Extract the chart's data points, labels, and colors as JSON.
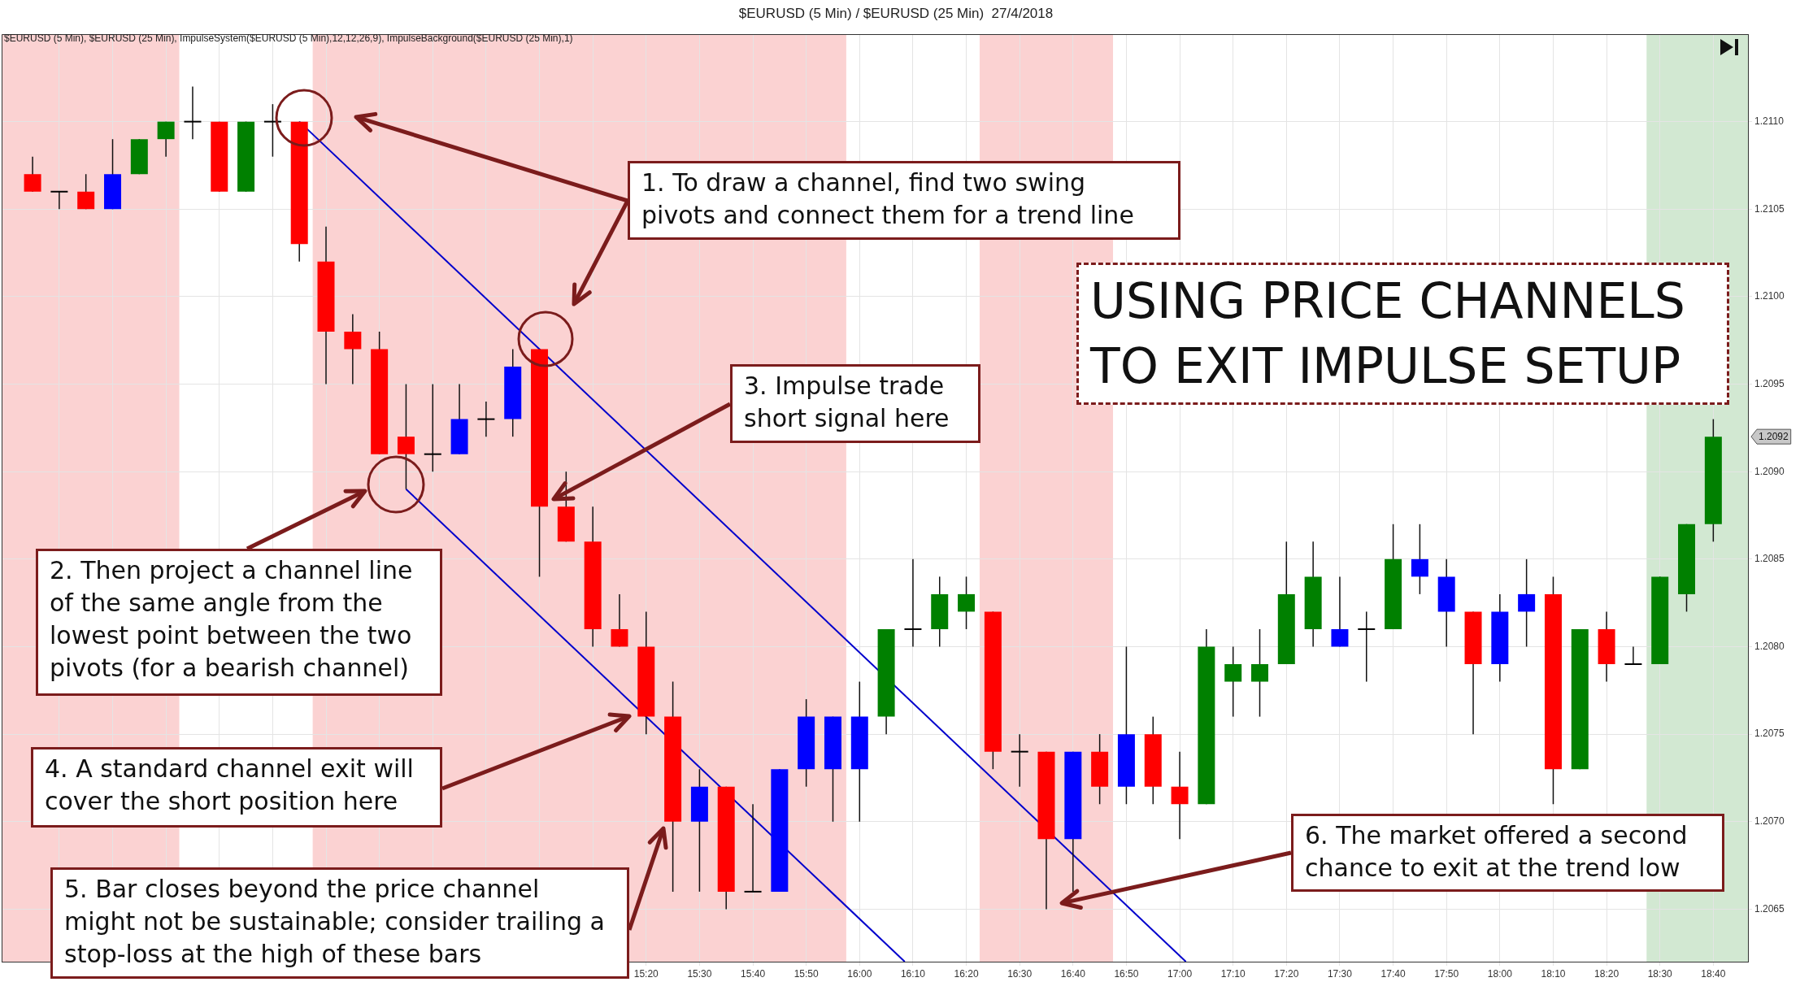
{
  "chart_data": {
    "type": "candlestick",
    "title": "$EURUSD (5 Min) / $EURUSD (25 Min)  27/4/2018",
    "subtitle": "$EURUSD (5 Min), $EURUSD (25 Min), ImpulseSystem($EURUSD (5 Min),12,12,26,9), ImpulseBackground($EURUSD (25 Min),1)",
    "x": [
      13.4167,
      13.5,
      13.5833,
      13.6667,
      13.75,
      13.8333,
      13.9167,
      14,
      14.0833,
      14.1667,
      14.25,
      14.3333,
      14.4167,
      14.5,
      14.5833,
      14.6667,
      14.75,
      14.8333,
      14.9167,
      15,
      15.0833,
      15.1667,
      15.25,
      15.3333,
      15.4167,
      15.5,
      15.5833,
      15.6667,
      15.75,
      15.8333,
      15.9167,
      16,
      16.0833,
      16.1667,
      16.25,
      16.3333,
      16.4167,
      16.5,
      16.5833,
      16.6667,
      16.75,
      16.8333,
      16.9167,
      17,
      17.0833,
      17.1667,
      17.25,
      17.3333,
      17.4167,
      17.5,
      17.5833,
      17.6667,
      17.75,
      17.8333,
      17.9167,
      18,
      18.0833,
      18.1667,
      18.25,
      18.3333,
      18.4167,
      18.5,
      18.5833,
      18.6667
    ],
    "ohlc": [
      [
        1.2107,
        1.2108,
        1.2106,
        1.2106
      ],
      [
        1.2106,
        1.2106,
        1.2105,
        1.2106
      ],
      [
        1.2106,
        1.2107,
        1.2105,
        1.2105
      ],
      [
        1.2105,
        1.2109,
        1.2105,
        1.2107
      ],
      [
        1.2107,
        1.2109,
        1.2107,
        1.2109
      ],
      [
        1.2109,
        1.211,
        1.2108,
        1.211
      ],
      [
        1.211,
        1.2112,
        1.2109,
        1.211
      ],
      [
        1.211,
        1.211,
        1.2106,
        1.2106
      ],
      [
        1.2106,
        1.211,
        1.2106,
        1.211
      ],
      [
        1.211,
        1.2111,
        1.2108,
        1.211
      ],
      [
        1.211,
        1.211,
        1.2102,
        1.2103
      ],
      [
        1.2102,
        1.2104,
        1.2095,
        1.2098
      ],
      [
        1.2098,
        1.2099,
        1.2095,
        1.2097
      ],
      [
        1.2097,
        1.2098,
        1.2091,
        1.2091
      ],
      [
        1.2092,
        1.2095,
        1.2089,
        1.2091
      ],
      [
        1.2091,
        1.2095,
        1.209,
        1.2091
      ],
      [
        1.2091,
        1.2095,
        1.2091,
        1.2093
      ],
      [
        1.2093,
        1.2094,
        1.2092,
        1.2093
      ],
      [
        1.2093,
        1.2097,
        1.2092,
        1.2096
      ],
      [
        1.2097,
        1.2097,
        1.2084,
        1.2088
      ],
      [
        1.2088,
        1.209,
        1.2086,
        1.2086
      ],
      [
        1.2086,
        1.2088,
        1.208,
        1.2081
      ],
      [
        1.2081,
        1.2083,
        1.208,
        1.208
      ],
      [
        1.208,
        1.2082,
        1.2075,
        1.2076
      ],
      [
        1.2076,
        1.2078,
        1.2066,
        1.207
      ],
      [
        1.207,
        1.2073,
        1.2066,
        1.2072
      ],
      [
        1.2072,
        1.2072,
        1.2065,
        1.2066
      ],
      [
        1.2066,
        1.2071,
        1.2066,
        1.2066
      ],
      [
        1.2066,
        1.2073,
        1.2066,
        1.2073
      ],
      [
        1.2073,
        1.2077,
        1.2072,
        1.2076
      ],
      [
        1.2073,
        1.2076,
        1.207,
        1.2076
      ],
      [
        1.2073,
        1.2078,
        1.207,
        1.2076
      ],
      [
        1.2076,
        1.2081,
        1.2075,
        1.2081
      ],
      [
        1.2081,
        1.2085,
        1.208,
        1.2081
      ],
      [
        1.2081,
        1.2084,
        1.208,
        1.2083
      ],
      [
        1.2082,
        1.2084,
        1.2081,
        1.2083
      ],
      [
        1.2082,
        1.2082,
        1.2073,
        1.2074
      ],
      [
        1.2074,
        1.2075,
        1.2072,
        1.2074
      ],
      [
        1.2074,
        1.2074,
        1.2065,
        1.2069
      ],
      [
        1.2069,
        1.2074,
        1.2066,
        1.2074
      ],
      [
        1.2074,
        1.2075,
        1.2071,
        1.2072
      ],
      [
        1.2072,
        1.208,
        1.2071,
        1.2075
      ],
      [
        1.2075,
        1.2076,
        1.2071,
        1.2072
      ],
      [
        1.2072,
        1.2074,
        1.2069,
        1.2071
      ],
      [
        1.2071,
        1.2081,
        1.2071,
        1.208
      ],
      [
        1.2078,
        1.208,
        1.2076,
        1.2079
      ],
      [
        1.2078,
        1.2081,
        1.2076,
        1.2079
      ],
      [
        1.2079,
        1.2086,
        1.2079,
        1.2083
      ],
      [
        1.2081,
        1.2086,
        1.208,
        1.2084
      ],
      [
        1.2081,
        1.2084,
        1.208,
        1.208
      ],
      [
        1.2081,
        1.2082,
        1.2078,
        1.2081
      ],
      [
        1.2081,
        1.2087,
        1.2081,
        1.2085
      ],
      [
        1.2085,
        1.2087,
        1.2083,
        1.2084
      ],
      [
        1.2084,
        1.2085,
        1.208,
        1.2082
      ],
      [
        1.2082,
        1.2082,
        1.2075,
        1.2079
      ],
      [
        1.2079,
        1.2083,
        1.2078,
        1.2082
      ],
      [
        1.2082,
        1.2085,
        1.208,
        1.2083
      ],
      [
        1.2083,
        1.2084,
        1.2071,
        1.2073
      ],
      [
        1.2073,
        1.2081,
        1.2073,
        1.2081
      ],
      [
        1.2081,
        1.2082,
        1.2078,
        1.2079
      ],
      [
        1.2079,
        1.208,
        1.2079,
        1.2079
      ],
      [
        1.2079,
        1.2084,
        1.2079,
        1.2084
      ],
      [
        1.2083,
        1.2087,
        1.2082,
        1.2087
      ],
      [
        1.2087,
        1.2093,
        1.2086,
        1.2092
      ]
    ],
    "colors": [
      "#ff0000",
      "#000000",
      "#ff0000",
      "#0000ff",
      "#008000",
      "#008000",
      "#000000",
      "#ff0000",
      "#008000",
      "#000000",
      "#ff0000",
      "#ff0000",
      "#ff0000",
      "#ff0000",
      "#ff0000",
      "#000000",
      "#0000ff",
      "#000000",
      "#0000ff",
      "#ff0000",
      "#ff0000",
      "#ff0000",
      "#ff0000",
      "#ff0000",
      "#ff0000",
      "#0000ff",
      "#ff0000",
      "#000000",
      "#0000ff",
      "#0000ff",
      "#0000ff",
      "#0000ff",
      "#008000",
      "#000000",
      "#008000",
      "#008000",
      "#ff0000",
      "#000000",
      "#ff0000",
      "#0000ff",
      "#ff0000",
      "#0000ff",
      "#ff0000",
      "#ff0000",
      "#008000",
      "#008000",
      "#008000",
      "#008000",
      "#008000",
      "#0000ff",
      "#000000",
      "#008000",
      "#0000ff",
      "#0000ff",
      "#ff0000",
      "#0000ff",
      "#0000ff",
      "#ff0000",
      "#008000",
      "#ff0000",
      "#000000",
      "#008000",
      "#008000",
      "#008000"
    ],
    "series": [
      {
        "type": "line",
        "color": "#0000cc",
        "x": [
          14.25,
          17.0192
        ],
        "values": [
          1.211,
          1.2062
        ]
      },
      {
        "type": "line",
        "color": "#0000cc",
        "x": [
          14.5833,
          16.141
        ],
        "values": [
          1.2089,
          1.2062
        ]
      }
    ],
    "bands": [
      {
        "axis": "x",
        "from": 13.32,
        "to": 13.875,
        "color": "#fbd2d2"
      },
      {
        "axis": "x",
        "from": 14.2917,
        "to": 15.9583,
        "color": "#fbd2d2"
      },
      {
        "axis": "x",
        "from": 16.375,
        "to": 16.7917,
        "color": "#fbd2d2"
      },
      {
        "axis": "x",
        "from": 18.4583,
        "to": 18.775,
        "color": "#d2e8d2"
      }
    ],
    "annotations": [
      "1. To draw a channel, find two swing pivots and connect them for a trend line",
      "USING PRICE CHANNELS TO EXIT IMPULSE SETUP",
      "3. Impulse trade short signal here",
      "2. Then project a channel line of the same angle from the lowest point between the two pivots (for a bearish channel)",
      "4. A standard channel exit will cover the short position here",
      "5. Bar closes beyond the price channel might not be sustainable; consider trailing a stop-loss at the high of these bars",
      "6. The market offered a second chance to exit at the trend low",
      "1.2092"
    ],
    "xlim": [
      13.32,
      18.775
    ],
    "xticks": [
      {
        "value": 13.5,
        "label": null
      },
      {
        "value": 13.6667,
        "label": null
      },
      {
        "value": 13.8333,
        "label": null
      },
      {
        "value": 14,
        "label": null
      },
      {
        "value": 14.1667,
        "label": null
      },
      {
        "value": 14.3333,
        "label": null
      },
      {
        "value": 14.5,
        "label": null
      },
      {
        "value": 14.6667,
        "label": null
      },
      {
        "value": 14.8333,
        "label": null
      },
      {
        "value": 15,
        "label": null
      },
      {
        "value": 15.1667,
        "label": null
      },
      {
        "value": 15.3333,
        "label": "15:20"
      },
      {
        "value": 15.5,
        "label": "15:30"
      },
      {
        "value": 15.6667,
        "label": "15:40"
      },
      {
        "value": 15.8333,
        "label": "15:50"
      },
      {
        "value": 16,
        "label": "16:00"
      },
      {
        "value": 16.1667,
        "label": "16:10"
      },
      {
        "value": 16.3333,
        "label": "16:20"
      },
      {
        "value": 16.5,
        "label": "16:30"
      },
      {
        "value": 16.6667,
        "label": "16:40"
      },
      {
        "value": 16.8333,
        "label": "16:50"
      },
      {
        "value": 17,
        "label": "17:00"
      },
      {
        "value": 17.1667,
        "label": "17:10"
      },
      {
        "value": 17.3333,
        "label": "17:20"
      },
      {
        "value": 17.5,
        "label": "17:30"
      },
      {
        "value": 17.6667,
        "label": "17:40"
      },
      {
        "value": 17.8333,
        "label": "17:50"
      },
      {
        "value": 18,
        "label": "18:00"
      },
      {
        "value": 18.1667,
        "label": "18:10"
      },
      {
        "value": 18.3333,
        "label": "18:20"
      },
      {
        "value": 18.5,
        "label": "18:30"
      },
      {
        "value": 18.6667,
        "label": "18:40"
      }
    ],
    "ylim": [
      1.2062,
      1.2115
    ],
    "yticks": [
      1.2065,
      {
        "value": 1.207,
        "label": "1.2070"
      },
      1.2075,
      {
        "value": 1.208,
        "label": "1.2080"
      },
      1.2085,
      {
        "value": 1.209,
        "label": "1.2090"
      },
      1.2095,
      {
        "value": 1.21,
        "label": "1.2100"
      },
      1.2105,
      {
        "value": 1.211,
        "label": "1.2110"
      }
    ],
    "grid": true
  }
}
